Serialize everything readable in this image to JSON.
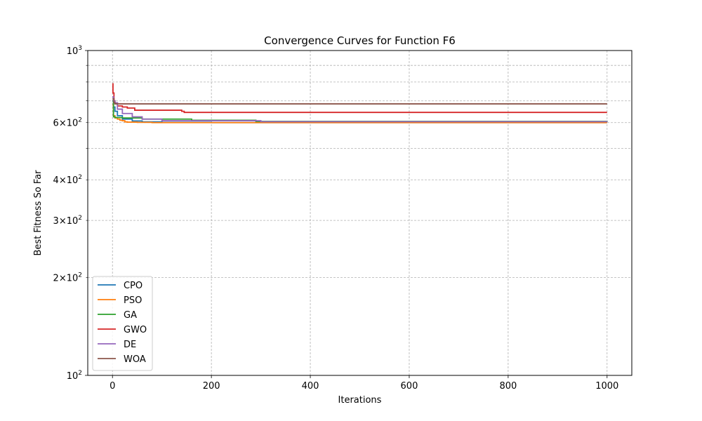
{
  "chart_data": {
    "type": "line",
    "title": "Convergence Curves for Function F6",
    "xlabel": "Iterations",
    "ylabel": "Best Fitness So Far",
    "xlim": [
      -50,
      1050
    ],
    "ylim": [
      100,
      1000
    ],
    "yscale": "log",
    "grid": true,
    "legend_position": "lower-left",
    "x_ticks": [
      0,
      200,
      400,
      600,
      800,
      1000
    ],
    "x_tick_labels": [
      "0",
      "200",
      "400",
      "600",
      "800",
      "1000"
    ],
    "y_major_ticks": [
      {
        "value": 100,
        "base": "10",
        "exp": "2"
      },
      {
        "value": 1000,
        "base": "10",
        "exp": "3"
      }
    ],
    "y_minor_ticks": [
      {
        "value": 200,
        "mant": "2",
        "base": "10",
        "exp": "2"
      },
      {
        "value": 300,
        "mant": "3",
        "base": "10",
        "exp": "2"
      },
      {
        "value": 400,
        "mant": "4",
        "base": "10",
        "exp": "2"
      },
      {
        "value": 500
      },
      {
        "value": 600,
        "mant": "6",
        "base": "10",
        "exp": "2"
      },
      {
        "value": 700
      },
      {
        "value": 800
      },
      {
        "value": 900
      }
    ],
    "series": [
      {
        "name": "CPO",
        "color": "#1f77b4",
        "x": [
          0,
          2,
          5,
          10,
          20,
          40,
          60,
          100,
          200,
          1000
        ],
        "y": [
          700,
          670,
          650,
          630,
          615,
          607,
          603,
          601,
          600,
          600
        ]
      },
      {
        "name": "PSO",
        "color": "#ff7f0e",
        "x": [
          0,
          2,
          5,
          10,
          15,
          20,
          25,
          30,
          50,
          80,
          1000
        ],
        "y": [
          680,
          630,
          620,
          615,
          610,
          608,
          603,
          602,
          601,
          600,
          600
        ]
      },
      {
        "name": "GA",
        "color": "#2ca02c",
        "x": [
          0,
          2,
          5,
          20,
          60,
          160,
          290,
          1000
        ],
        "y": [
          700,
          625,
          622,
          620,
          615,
          610,
          605,
          604
        ]
      },
      {
        "name": "GWO",
        "color": "#d62728",
        "x": [
          0,
          1,
          3,
          5,
          10,
          20,
          30,
          45,
          130,
          140,
          145,
          1000
        ],
        "y": [
          790,
          740,
          700,
          690,
          675,
          670,
          665,
          655,
          655,
          650,
          645,
          645
        ]
      },
      {
        "name": "DE",
        "color": "#9467bd",
        "x": [
          0,
          2,
          5,
          10,
          20,
          40,
          60,
          100,
          300,
          1000
        ],
        "y": [
          720,
          700,
          690,
          660,
          640,
          625,
          615,
          608,
          604,
          603
        ]
      },
      {
        "name": "WOA",
        "color": "#8c564b",
        "x": [
          0,
          3,
          5,
          1000
        ],
        "y": [
          710,
          690,
          685,
          685
        ]
      }
    ]
  }
}
